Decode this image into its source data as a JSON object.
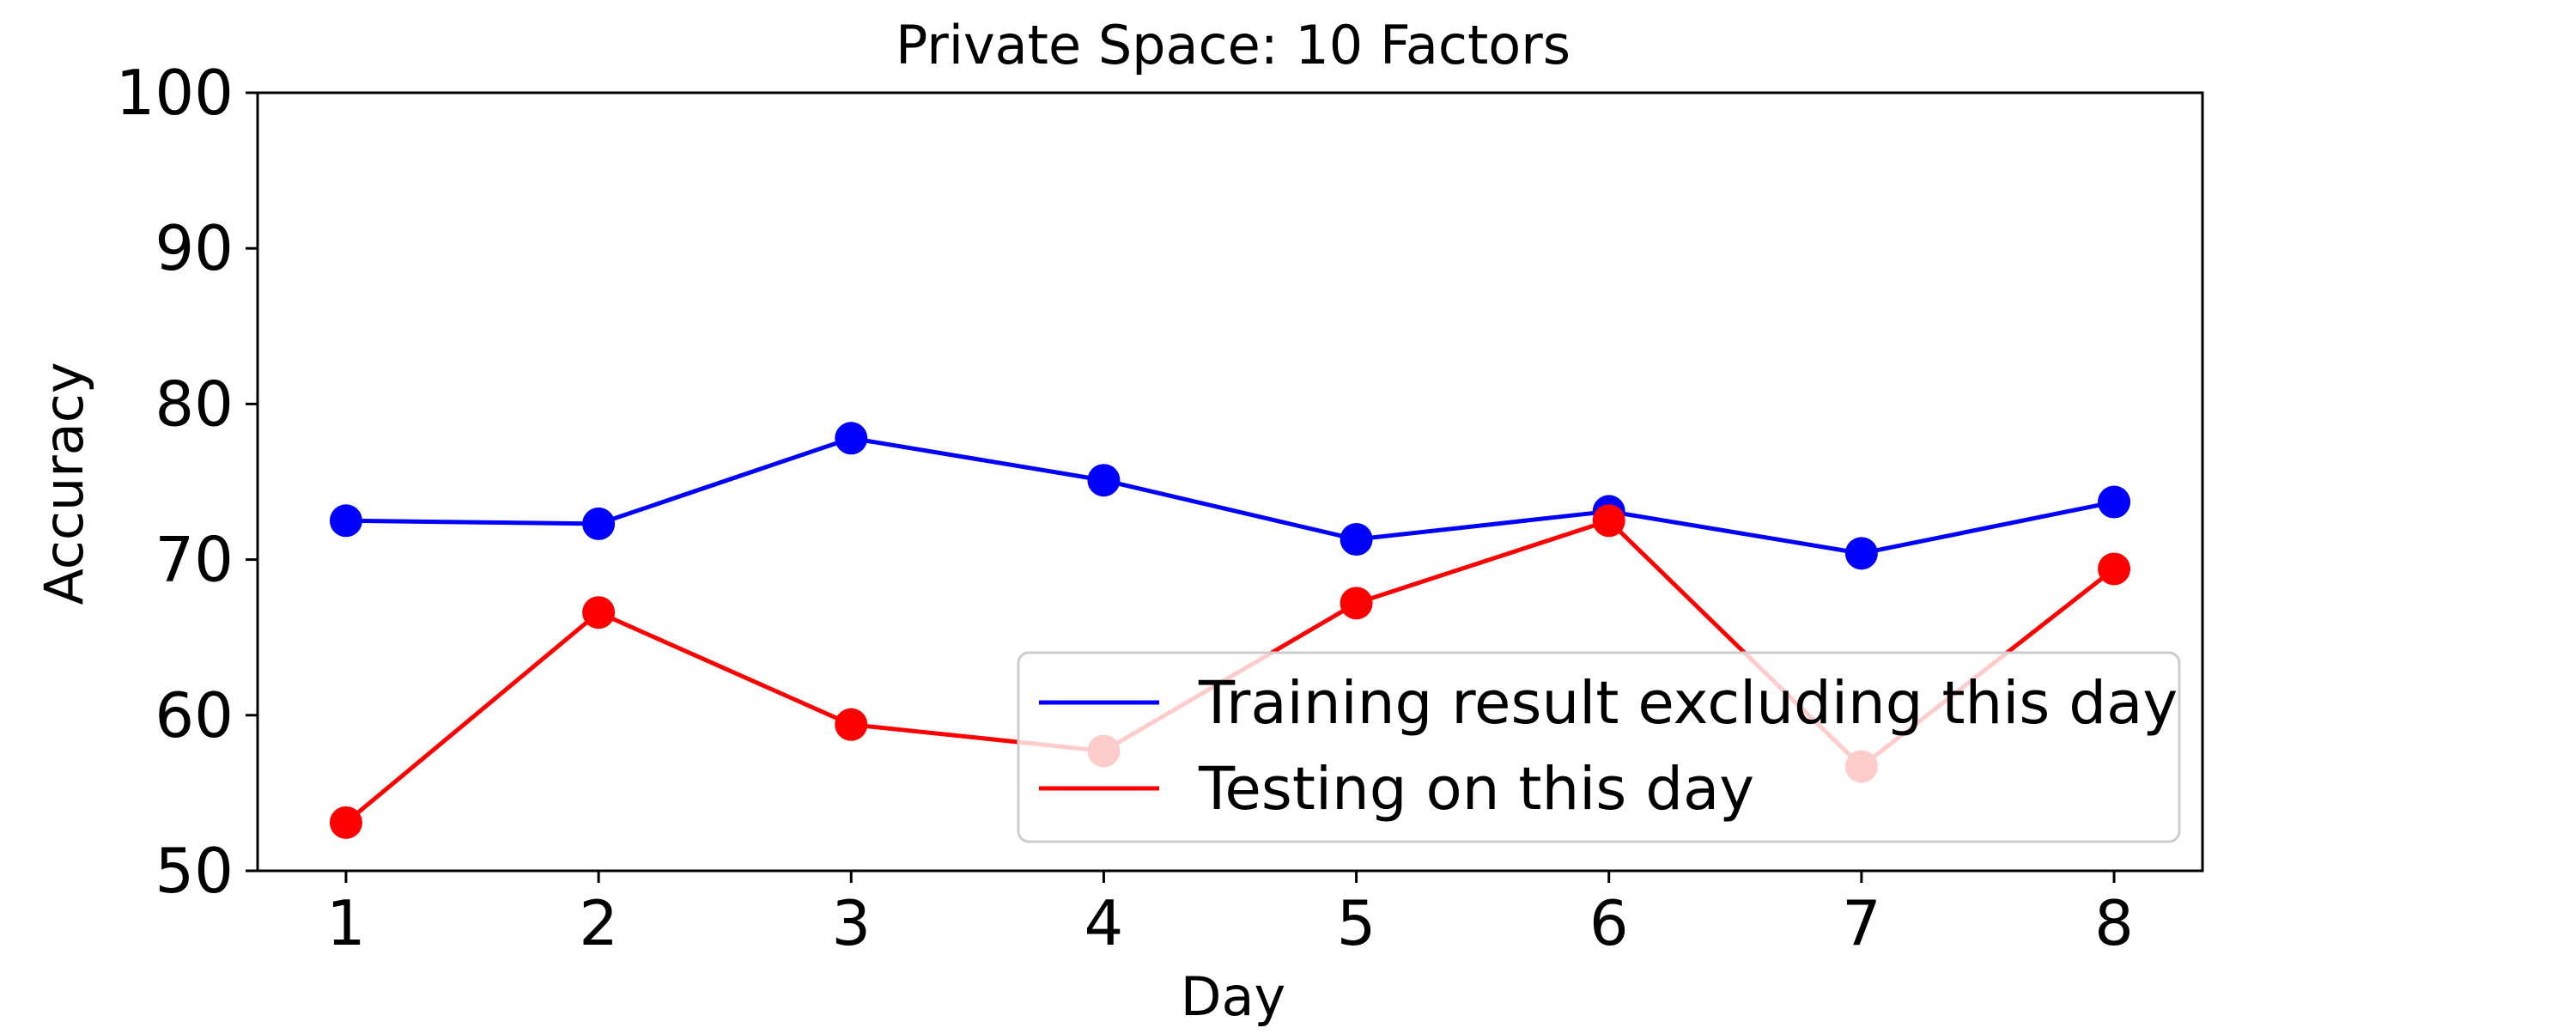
{
  "chart_data": {
    "type": "line",
    "title": "Private Space: 10 Factors",
    "xlabel": "Day",
    "ylabel": "Accuracy",
    "x": [
      1,
      2,
      3,
      4,
      5,
      6,
      7,
      8
    ],
    "xlim": [
      0.65,
      8.35
    ],
    "ylim": [
      50,
      100
    ],
    "yticks": [
      50,
      60,
      70,
      80,
      90,
      100
    ],
    "grid": false,
    "legend_position": "lower-right",
    "series": [
      {
        "name": "Training result excluding this day",
        "color": "#0000ff",
        "marker": "circle",
        "values": [
          72.5,
          72.3,
          77.8,
          75.1,
          71.3,
          73.1,
          70.4,
          73.7
        ]
      },
      {
        "name": "Testing on this day",
        "color": "#ff0000",
        "marker": "circle",
        "values": [
          53.1,
          66.6,
          59.4,
          57.7,
          67.2,
          72.5,
          56.7,
          69.4
        ]
      }
    ]
  }
}
